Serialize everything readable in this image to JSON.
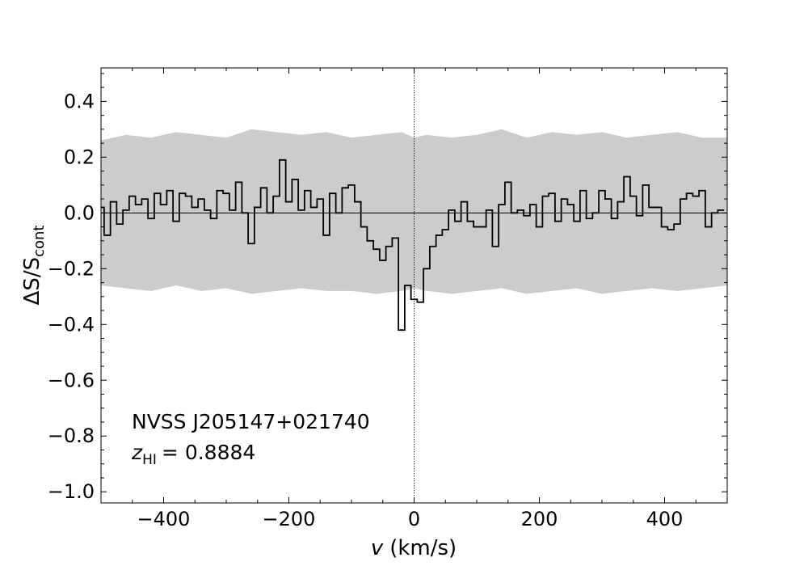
{
  "chart_data": {
    "type": "line",
    "title": "",
    "xlabel": {
      "var": "v",
      "unit": "(km/s)"
    },
    "ylabel": {
      "prefix": "ΔS/S",
      "sub": "cont"
    },
    "xlim": [
      -500,
      500
    ],
    "ylim": [
      -1.04,
      0.52
    ],
    "x_ticks": [
      -400,
      -200,
      0,
      200,
      400
    ],
    "x_tick_labels": [
      "−400",
      "−200",
      "0",
      "200",
      "400"
    ],
    "y_ticks": [
      0.4,
      0.2,
      0.0,
      -0.2,
      -0.4,
      -0.6,
      -0.8,
      -1.0
    ],
    "y_tick_labels": [
      "0.4",
      "0.2",
      "0.0",
      "−0.2",
      "−0.4",
      "−0.6",
      "−0.8",
      "−1.0"
    ],
    "grid": false,
    "reference_lines": {
      "horizontal_y": 0.0,
      "vertical_x": 0
    },
    "colors": {
      "spectrum": "#000000",
      "noise_band": "#cccccc"
    },
    "annotation": {
      "source": "NVSS J205147+021740",
      "redshift_symbol": "z",
      "redshift_sub": "HI",
      "redshift_value": "= 0.8884"
    },
    "noise_band": {
      "x": [
        -500,
        -460,
        -420,
        -380,
        -340,
        -300,
        -260,
        -220,
        -180,
        -140,
        -100,
        -60,
        -20,
        0,
        20,
        60,
        100,
        140,
        180,
        220,
        260,
        300,
        340,
        380,
        420,
        460,
        500
      ],
      "upper": [
        0.26,
        0.28,
        0.27,
        0.29,
        0.28,
        0.27,
        0.3,
        0.29,
        0.28,
        0.29,
        0.27,
        0.28,
        0.29,
        0.27,
        0.28,
        0.27,
        0.28,
        0.3,
        0.27,
        0.29,
        0.28,
        0.29,
        0.27,
        0.28,
        0.29,
        0.27,
        0.27
      ],
      "lower": [
        -0.26,
        -0.27,
        -0.28,
        -0.26,
        -0.28,
        -0.27,
        -0.29,
        -0.28,
        -0.27,
        -0.28,
        -0.28,
        -0.29,
        -0.28,
        -0.27,
        -0.28,
        -0.29,
        -0.28,
        -0.27,
        -0.29,
        -0.28,
        -0.27,
        -0.29,
        -0.28,
        -0.27,
        -0.28,
        -0.27,
        -0.26
      ]
    },
    "series": [
      {
        "x": [
          -500,
          -490,
          -480,
          -470,
          -460,
          -450,
          -440,
          -430,
          -420,
          -410,
          -400,
          -390,
          -380,
          -370,
          -360,
          -350,
          -340,
          -330,
          -320,
          -310,
          -300,
          -290,
          -280,
          -270,
          -260,
          -250,
          -240,
          -230,
          -220,
          -210,
          -200,
          -190,
          -180,
          -170,
          -160,
          -150,
          -140,
          -130,
          -120,
          -110,
          -100,
          -90,
          -80,
          -70,
          -60,
          -50,
          -40,
          -30,
          -20,
          -10,
          0,
          10,
          20,
          30,
          40,
          50,
          60,
          70,
          80,
          90,
          100,
          110,
          120,
          130,
          140,
          150,
          160,
          170,
          180,
          190,
          200,
          210,
          220,
          230,
          240,
          250,
          260,
          270,
          280,
          290,
          300,
          310,
          320,
          330,
          340,
          350,
          360,
          370,
          380,
          390,
          400,
          410,
          420,
          430,
          440,
          450,
          460,
          470,
          480,
          490
        ],
        "values": [
          0.02,
          -0.08,
          0.04,
          -0.04,
          0.01,
          0.06,
          0.03,
          0.05,
          -0.02,
          0.07,
          0.03,
          0.08,
          -0.03,
          0.07,
          0.06,
          0.02,
          0.05,
          0.01,
          -0.02,
          0.08,
          0.07,
          0.01,
          0.11,
          0.0,
          -0.11,
          0.02,
          0.09,
          0.0,
          0.06,
          0.19,
          0.04,
          0.12,
          0.01,
          0.08,
          0.02,
          0.05,
          -0.08,
          0.07,
          0.0,
          0.09,
          0.1,
          0.04,
          -0.05,
          -0.1,
          -0.13,
          -0.17,
          -0.12,
          -0.09,
          -0.42,
          -0.26,
          -0.31,
          -0.32,
          -0.2,
          -0.12,
          -0.08,
          -0.06,
          0.01,
          -0.03,
          0.04,
          -0.03,
          -0.05,
          -0.05,
          0.01,
          -0.12,
          0.03,
          0.11,
          0.0,
          0.01,
          -0.01,
          0.03,
          -0.05,
          0.06,
          0.07,
          -0.03,
          0.05,
          0.03,
          -0.03,
          0.08,
          -0.02,
          0.0,
          0.08,
          0.05,
          -0.02,
          0.04,
          0.13,
          0.06,
          -0.01,
          0.1,
          0.02,
          0.02,
          -0.05,
          -0.06,
          -0.04,
          0.05,
          0.07,
          0.06,
          0.08,
          -0.05,
          0.0,
          0.01
        ]
      }
    ]
  }
}
